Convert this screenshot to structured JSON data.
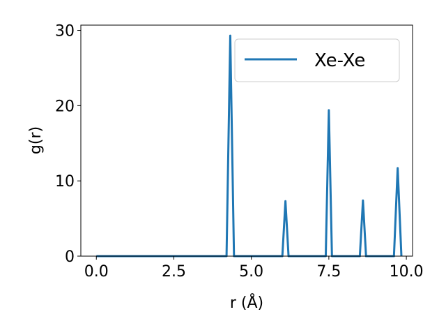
{
  "chart_data": {
    "type": "line",
    "xlabel": "r (Å)",
    "ylabel": "g(r)",
    "xlim": [
      -0.5,
      10.2
    ],
    "ylim": [
      0,
      30.7
    ],
    "xticks": [
      0.0,
      2.5,
      5.0,
      7.5,
      10.0
    ],
    "xtick_labels": [
      "0.0",
      "2.5",
      "5.0",
      "7.5",
      "10.0"
    ],
    "yticks": [
      0,
      10,
      20,
      30
    ],
    "ytick_labels": [
      "0",
      "10",
      "20",
      "30"
    ],
    "grid": false,
    "legend_position": "top-right",
    "series": [
      {
        "name": "Xe-Xe",
        "color": "#1f77b4",
        "x": [
          0.0,
          4.2,
          4.32,
          4.44,
          6.0,
          6.1,
          6.2,
          7.4,
          7.5,
          7.6,
          8.5,
          8.6,
          8.7,
          9.6,
          9.72,
          9.84
        ],
        "y": [
          0,
          0,
          29.3,
          0,
          0,
          7.3,
          0,
          0,
          19.4,
          0,
          0,
          7.4,
          0,
          0,
          11.7,
          0
        ]
      }
    ]
  }
}
